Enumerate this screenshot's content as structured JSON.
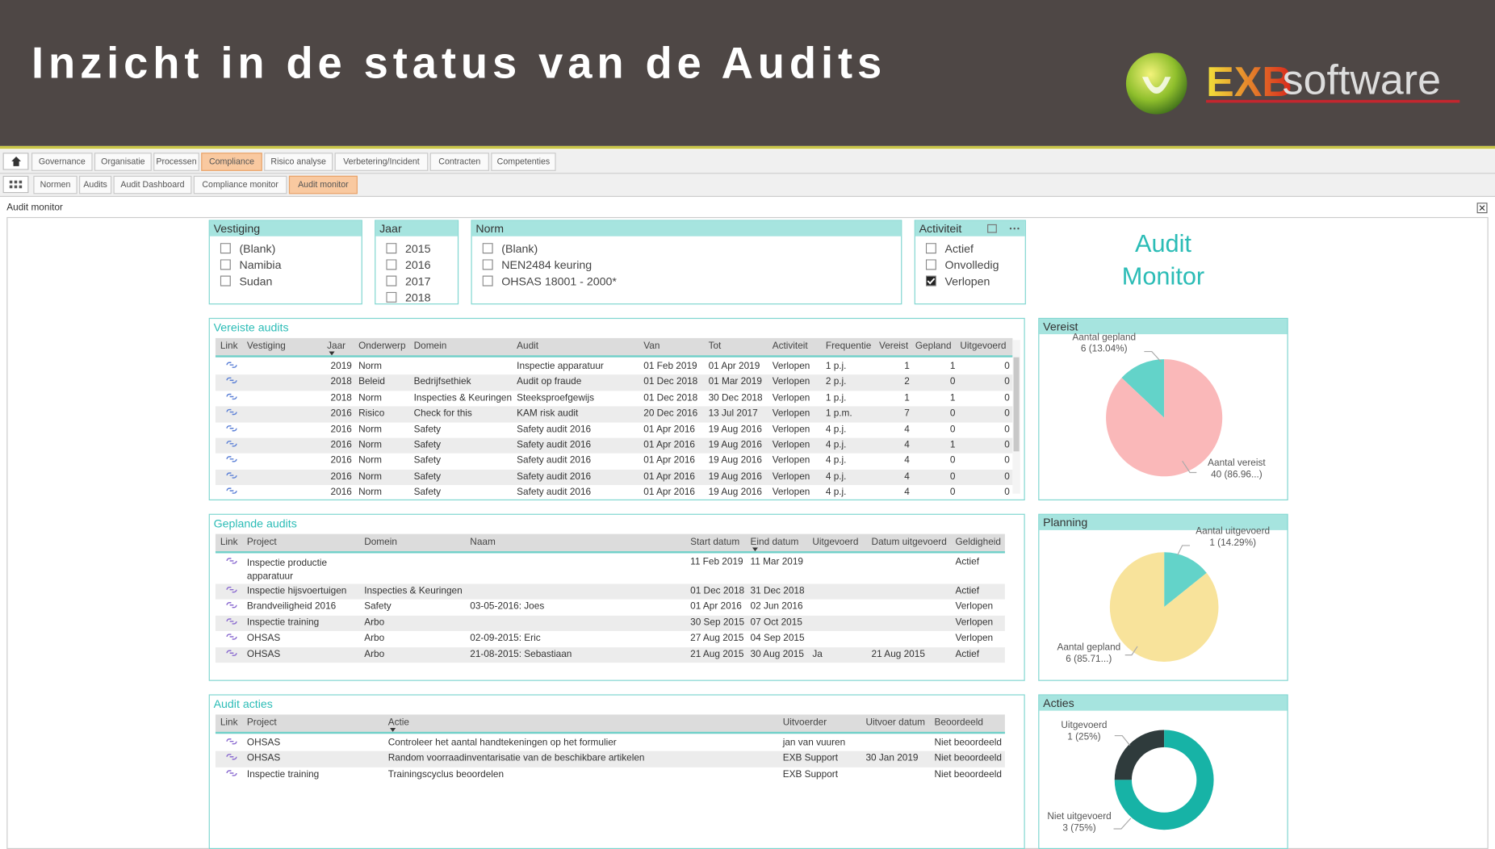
{
  "header": {
    "title": "Inzicht in de status van de Audits",
    "logo": {
      "brand": "EXB",
      "product": "software"
    }
  },
  "nav": {
    "main": [
      "Governance",
      "Organisatie",
      "Processen",
      "Compliance",
      "Risico analyse",
      "Verbetering/Incident",
      "Contracten",
      "Competenties"
    ],
    "main_active": 3,
    "sub": [
      "Normen",
      "Audits",
      "Audit Dashboard",
      "Compliance monitor",
      "Audit monitor"
    ],
    "sub_active": 4
  },
  "pane_title": "Audit monitor",
  "dashboard_title": [
    "Audit",
    "Monitor"
  ],
  "slicers": [
    {
      "title": "Vestiging",
      "items": [
        "(Blank)",
        "Namibia",
        "Sudan"
      ],
      "checked": [
        false,
        false,
        false
      ]
    },
    {
      "title": "Jaar",
      "items": [
        "2015",
        "2016",
        "2017",
        "2018"
      ],
      "checked": [
        false,
        false,
        false,
        false
      ]
    },
    {
      "title": "Norm",
      "items": [
        "(Blank)",
        "NEN2484 keuring",
        "OHSAS 18001 - 2000*"
      ],
      "checked": [
        false,
        false,
        false
      ]
    },
    {
      "title": "Activiteit",
      "items": [
        "Actief",
        "Onvolledig",
        "Verlopen"
      ],
      "checked": [
        false,
        false,
        true
      ]
    }
  ],
  "tables": [
    {
      "title": "Vereiste audits",
      "columns": [
        "Link",
        "Vestiging",
        "Jaar",
        "Onderwerp",
        "Domein",
        "Audit",
        "Van",
        "Tot",
        "Activiteit",
        "Frequentie",
        "Vereist",
        "Gepland",
        "Uitgevoerd"
      ],
      "rows": [
        [
          null,
          2019,
          "Norm",
          null,
          "Inspectie apparatuur",
          "01 Feb 2019",
          "01 Apr 2019",
          "Verlopen",
          "1 p.j.",
          1,
          1,
          0
        ],
        [
          null,
          2018,
          "Beleid",
          "Bedrijfsethiek",
          "Audit op fraude",
          "01 Dec 2018",
          "01 Mar 2019",
          "Verlopen",
          "2 p.j.",
          2,
          0,
          0
        ],
        [
          null,
          2018,
          "Norm",
          "Inspecties & Keuringen",
          "Steeksproefgewijs",
          "01 Dec 2018",
          "30 Dec 2018",
          "Verlopen",
          "1 p.j.",
          1,
          1,
          0
        ],
        [
          null,
          2016,
          "Risico",
          "Check for this",
          "KAM risk audit",
          "20 Dec 2016",
          "13 Jul 2017",
          "Verlopen",
          "1 p.m.",
          7,
          0,
          0
        ],
        [
          null,
          2016,
          "Norm",
          "Safety",
          "Safety audit 2016",
          "01 Apr 2016",
          "19 Aug 2016",
          "Verlopen",
          "4 p.j.",
          4,
          0,
          0
        ],
        [
          null,
          2016,
          "Norm",
          "Safety",
          "Safety audit 2016",
          "01 Apr 2016",
          "19 Aug 2016",
          "Verlopen",
          "4 p.j.",
          4,
          1,
          0
        ],
        [
          null,
          2016,
          "Norm",
          "Safety",
          "Safety audit 2016",
          "01 Apr 2016",
          "19 Aug 2016",
          "Verlopen",
          "4 p.j.",
          4,
          0,
          0
        ],
        [
          null,
          2016,
          "Norm",
          "Safety",
          "Safety audit 2016",
          "01 Apr 2016",
          "19 Aug 2016",
          "Verlopen",
          "4 p.j.",
          4,
          0,
          0
        ],
        [
          null,
          2016,
          "Norm",
          "Safety",
          "Safety audit 2016",
          "01 Apr 2016",
          "19 Aug 2016",
          "Verlopen",
          "4 p.j.",
          4,
          0,
          0
        ]
      ]
    },
    {
      "title": "Geplande audits",
      "columns": [
        "Link",
        "Project",
        "Domein",
        "Naam",
        "Start datum",
        "Eind datum",
        "Uitgevoerd",
        "Datum uitgevoerd",
        "Geldigheid"
      ],
      "rows": [
        [
          "Inspectie productie apparatuur",
          null,
          null,
          "11 Feb 2019",
          "11 Mar 2019",
          null,
          null,
          "Actief"
        ],
        [
          "Inspectie hijsvoertuigen",
          "Inspecties & Keuringen",
          null,
          "01 Dec 2018",
          "31 Dec 2018",
          null,
          null,
          "Actief"
        ],
        [
          "Brandveiligheid 2016",
          "Safety",
          "03-05-2016: Joes",
          "01 Apr 2016",
          "02 Jun 2016",
          null,
          null,
          "Verlopen"
        ],
        [
          "Inspectie training",
          "Arbo",
          null,
          "30 Sep 2015",
          "07 Oct 2015",
          null,
          null,
          "Verlopen"
        ],
        [
          "OHSAS",
          "Arbo",
          "02-09-2015: Eric",
          "27 Aug 2015",
          "04 Sep 2015",
          null,
          null,
          "Verlopen"
        ],
        [
          "OHSAS",
          "Arbo",
          "21-08-2015: Sebastiaan",
          "21 Aug 2015",
          "30 Aug 2015",
          "Ja",
          "21 Aug 2015",
          "Actief"
        ]
      ]
    },
    {
      "title": "Audit acties",
      "columns": [
        "Link",
        "Project",
        "Actie",
        "Uitvoerder",
        "Uitvoer datum",
        "Beoordeeld"
      ],
      "rows": [
        [
          "OHSAS",
          "Controleer het aantal handtekeningen op het formulier",
          "jan van vuuren",
          null,
          "Niet beoordeeld"
        ],
        [
          "OHSAS",
          "Random voorraadinventarisatie van de beschikbare artikelen",
          "EXB Support",
          "30 Jan 2019",
          "Niet beoordeeld"
        ],
        [
          "Inspectie training",
          "Trainingscyclus beoordelen",
          "EXB Support",
          null,
          "Niet beoordeeld"
        ]
      ]
    }
  ],
  "pies": [
    {
      "type": "pie",
      "title": "Vereist",
      "clockwise": false,
      "slices": [
        {
          "name": "Aantal gepland",
          "value": 6,
          "value_label": "6 (13.04%)",
          "color": "#63d3c9"
        },
        {
          "name": "Aantal vereist",
          "value": 40,
          "value_label": "40 (86.96...)",
          "color": "#fab8b9"
        }
      ]
    },
    {
      "type": "pie",
      "title": "Planning",
      "clockwise": true,
      "slices": [
        {
          "name": "Aantal uitgevoerd",
          "value": 1,
          "value_label": "1 (14.29%)",
          "color": "#63d3c9"
        },
        {
          "name": "Aantal gepland",
          "value": 6,
          "value_label": "6 (85.71...)",
          "color": "#f8e39b"
        }
      ]
    },
    {
      "type": "donut",
      "title": "Acties",
      "clockwise": false,
      "slices": [
        {
          "name": "Uitgevoerd",
          "value": 1,
          "value_label": "1 (25%)",
          "color": "#2f3b3c"
        },
        {
          "name": "Niet uitgevoerd",
          "value": 3,
          "value_label": "3 (75%)",
          "color": "#17b3a6"
        }
      ]
    }
  ]
}
